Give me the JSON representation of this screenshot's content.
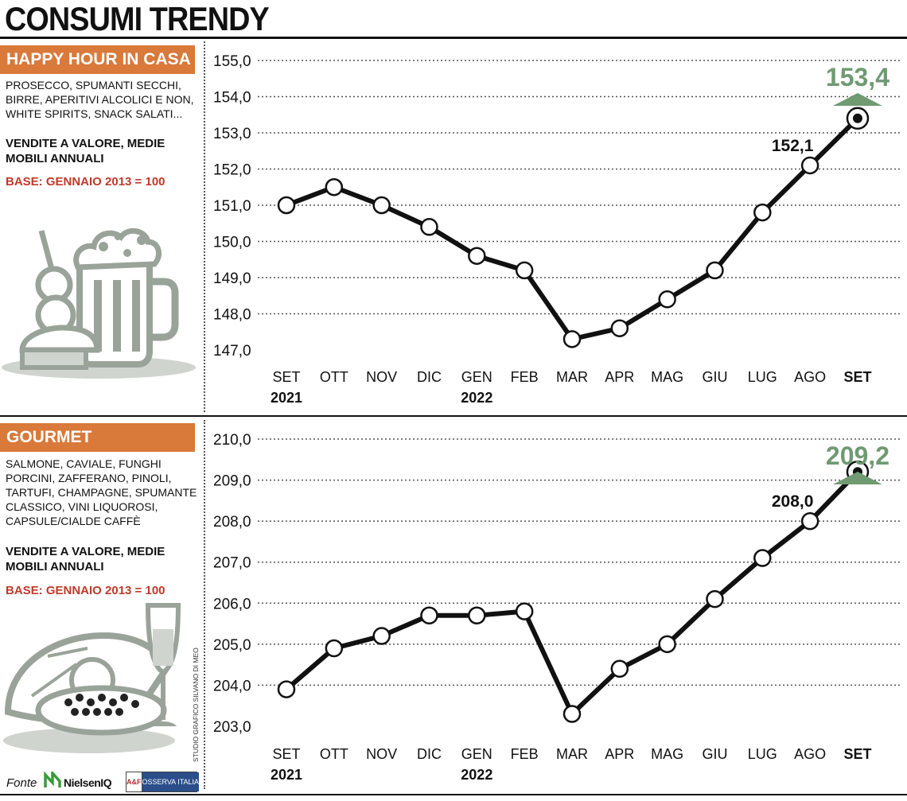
{
  "title": "CONSUMI TRENDY",
  "colors": {
    "label_bg": "#d9793a",
    "highlight": "#6f9a72",
    "base_text": "#c0392b",
    "line": "#111111",
    "illustration": "#9aa39a"
  },
  "panels": [
    {
      "label": "HAPPY HOUR IN CASA",
      "description": "PROSECCO, SPUMANTI SECCHI, BIRRE, APERITIVI ALCOLICI E NON, WHITE SPIRITS, SNACK SALATI...",
      "measure": "VENDITE A VALORE, MEDIE MOBILI ANNUALI",
      "base": "BASE: GENNAIO 2013 = 100",
      "illustration": "beer-mug-olives-cheese-icon"
    },
    {
      "label": "GOURMET",
      "description": "SALMONE, CAVIALE, FUNGHI PORCINI, ZAFFERANO, PINOLI, TARTUFI, CHAMPAGNE, SPUMANTE CLASSICO, VINI LIQUOROSI, CAPSULE/CIALDE CAFFÈ",
      "measure": "VENDITE A VALORE, MEDIE MOBILI ANNUALI",
      "base": "BASE: GENNAIO 2013 = 100",
      "illustration": "salmon-caviar-champagne-icon"
    }
  ],
  "chart_data": [
    {
      "type": "line",
      "categories": [
        "SET",
        "OTT",
        "NOV",
        "DIC",
        "GEN",
        "FEB",
        "MAR",
        "APR",
        "MAG",
        "GIU",
        "LUG",
        "AGO",
        "SET"
      ],
      "year_labels": [
        "2021",
        "",
        "",
        "",
        "2022",
        "",
        "",
        "",
        "",
        "",
        "",
        "",
        ""
      ],
      "values": [
        151.0,
        151.5,
        151.0,
        150.4,
        149.6,
        149.2,
        147.3,
        147.6,
        148.4,
        149.2,
        150.8,
        152.1,
        153.4
      ],
      "yticks": [
        "155,0",
        "154,0",
        "153,0",
        "152,0",
        "151,0",
        "150,0",
        "149,0",
        "148,0",
        "147,0"
      ],
      "ylim": [
        147.0,
        155.0
      ],
      "grid": true,
      "annotations": [
        {
          "index": 11,
          "text": "152,1"
        },
        {
          "index": 12,
          "text": "153,4",
          "highlight": true
        }
      ]
    },
    {
      "type": "line",
      "categories": [
        "SET",
        "OTT",
        "NOV",
        "DIC",
        "GEN",
        "FEB",
        "MAR",
        "APR",
        "MAG",
        "GIU",
        "LUG",
        "AGO",
        "SET"
      ],
      "year_labels": [
        "2021",
        "",
        "",
        "",
        "2022",
        "",
        "",
        "",
        "",
        "",
        "",
        "",
        ""
      ],
      "values": [
        203.9,
        204.9,
        205.2,
        205.7,
        205.7,
        205.8,
        203.3,
        204.4,
        205.0,
        206.1,
        207.1,
        208.0,
        209.2
      ],
      "yticks": [
        "210,0",
        "209,0",
        "208,0",
        "207,0",
        "206,0",
        "205,0",
        "204,0",
        "203,0"
      ],
      "ylim": [
        203.0,
        210.0
      ],
      "grid": true,
      "annotations": [
        {
          "index": 11,
          "text": "208,0"
        },
        {
          "index": 12,
          "text": "209,2",
          "highlight": true
        }
      ]
    }
  ],
  "credit": "STUDIO GRAFICO SILVANO DI MEO",
  "footer": {
    "source_label": "Fonte",
    "source1": "NielsenIQ",
    "source2_logo": "A&F",
    "source2": "OSSERVA ITALIA"
  }
}
